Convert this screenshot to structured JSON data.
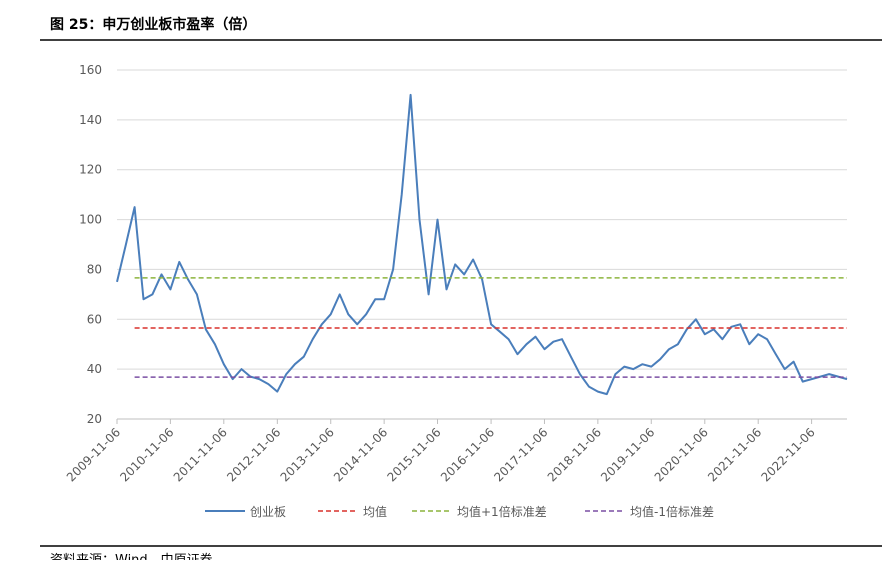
{
  "chart_data": {
    "type": "line",
    "title": "图 25：申万创业板市盈率（倍）",
    "source": "资料来源：Wind，中原证券",
    "x": [
      "2009-11-06",
      "2010-01-06",
      "2010-03-06",
      "2010-05-06",
      "2010-07-06",
      "2010-09-06",
      "2010-11-06",
      "2011-01-06",
      "2011-03-06",
      "2011-05-06",
      "2011-07-06",
      "2011-09-06",
      "2011-11-06",
      "2012-01-06",
      "2012-03-06",
      "2012-05-06",
      "2012-07-06",
      "2012-09-06",
      "2012-11-06",
      "2013-01-06",
      "2013-03-06",
      "2013-05-06",
      "2013-07-06",
      "2013-09-06",
      "2013-11-06",
      "2014-01-06",
      "2014-03-06",
      "2014-05-06",
      "2014-07-06",
      "2014-09-06",
      "2014-11-06",
      "2015-01-06",
      "2015-03-06",
      "2015-05-06",
      "2015-07-06",
      "2015-09-06",
      "2015-11-06",
      "2016-01-06",
      "2016-03-06",
      "2016-05-06",
      "2016-07-06",
      "2016-09-06",
      "2016-11-06",
      "2017-01-06",
      "2017-03-06",
      "2017-05-06",
      "2017-07-06",
      "2017-09-06",
      "2017-11-06",
      "2018-01-06",
      "2018-03-06",
      "2018-05-06",
      "2018-07-06",
      "2018-09-06",
      "2018-11-06",
      "2019-01-06",
      "2019-03-06",
      "2019-05-06",
      "2019-07-06",
      "2019-09-06",
      "2019-11-06",
      "2020-01-06",
      "2020-03-06",
      "2020-05-06",
      "2020-07-06",
      "2020-09-06",
      "2020-11-06",
      "2021-01-06",
      "2021-03-06",
      "2021-05-06",
      "2021-07-06",
      "2021-09-06",
      "2021-11-06",
      "2022-01-06",
      "2022-03-06",
      "2022-05-06",
      "2022-07-06",
      "2022-09-06",
      "2022-11-06",
      "2023-01-06",
      "2023-03-06",
      "2023-05-06",
      "2023-07-06"
    ],
    "series": [
      {
        "name": "创业板",
        "color": "#4a7ebb",
        "width": 2,
        "dash": "",
        "values": [
          75,
          90,
          105,
          68,
          70,
          78,
          72,
          83,
          76,
          70,
          56,
          50,
          42,
          36,
          40,
          37,
          36,
          34,
          31,
          38,
          42,
          45,
          52,
          58,
          62,
          70,
          62,
          58,
          62,
          68,
          68,
          80,
          110,
          150,
          100,
          70,
          100,
          72,
          82,
          78,
          84,
          76,
          58,
          55,
          52,
          46,
          50,
          53,
          48,
          51,
          52,
          45,
          38,
          33,
          31,
          30,
          38,
          41,
          40,
          42,
          41,
          44,
          48,
          50,
          56,
          60,
          54,
          56,
          52,
          57,
          58,
          50,
          54,
          52,
          46,
          40,
          43,
          35,
          36,
          37,
          38,
          37,
          36
        ]
      },
      {
        "name": "均值",
        "color": "#d9302c",
        "width": 1.5,
        "dash": "5,3",
        "values": [
          null,
          null,
          56.5,
          56.5,
          56.5,
          56.5,
          56.5,
          56.5,
          56.5,
          56.5,
          56.5,
          56.5,
          56.5,
          56.5,
          56.5,
          56.5,
          56.5,
          56.5,
          56.5,
          56.5,
          56.5,
          56.5,
          56.5,
          56.5,
          56.5,
          56.5,
          56.5,
          56.5,
          56.5,
          56.5,
          56.5,
          56.5,
          56.5,
          56.5,
          56.5,
          56.5,
          56.5,
          56.5,
          56.5,
          56.5,
          56.5,
          56.5,
          56.5,
          56.5,
          56.5,
          56.5,
          56.5,
          56.5,
          56.5,
          56.5,
          56.5,
          56.5,
          56.5,
          56.5,
          56.5,
          56.5,
          56.5,
          56.5,
          56.5,
          56.5,
          56.5,
          56.5,
          56.5,
          56.5,
          56.5,
          56.5,
          56.5,
          56.5,
          56.5,
          56.5,
          56.5,
          56.5,
          56.5,
          56.5,
          56.5,
          56.5,
          56.5,
          56.5,
          56.5,
          56.5,
          56.5,
          56.5,
          56.5
        ]
      },
      {
        "name": "均值+1倍标准差",
        "color": "#8cb43c",
        "width": 1.5,
        "dash": "5,3",
        "values": [
          null,
          null,
          76.6,
          76.6,
          76.6,
          76.6,
          76.6,
          76.6,
          76.6,
          76.6,
          76.6,
          76.6,
          76.6,
          76.6,
          76.6,
          76.6,
          76.6,
          76.6,
          76.6,
          76.6,
          76.6,
          76.6,
          76.6,
          76.6,
          76.6,
          76.6,
          76.6,
          76.6,
          76.6,
          76.6,
          76.6,
          76.6,
          76.6,
          76.6,
          76.6,
          76.6,
          76.6,
          76.6,
          76.6,
          76.6,
          76.6,
          76.6,
          76.6,
          76.6,
          76.6,
          76.6,
          76.6,
          76.6,
          76.6,
          76.6,
          76.6,
          76.6,
          76.6,
          76.6,
          76.6,
          76.6,
          76.6,
          76.6,
          76.6,
          76.6,
          76.6,
          76.6,
          76.6,
          76.6,
          76.6,
          76.6,
          76.6,
          76.6,
          76.6,
          76.6,
          76.6,
          76.6,
          76.6,
          76.6,
          76.6,
          76.6,
          76.6,
          76.6,
          76.6,
          76.6,
          76.6,
          76.6,
          76.6
        ]
      },
      {
        "name": "均值-1倍标准差",
        "color": "#7a4fa3",
        "width": 1.5,
        "dash": "5,3",
        "values": [
          null,
          null,
          36.8,
          36.8,
          36.8,
          36.8,
          36.8,
          36.8,
          36.8,
          36.8,
          36.8,
          36.8,
          36.8,
          36.8,
          36.8,
          36.8,
          36.8,
          36.8,
          36.8,
          36.8,
          36.8,
          36.8,
          36.8,
          36.8,
          36.8,
          36.8,
          36.8,
          36.8,
          36.8,
          36.8,
          36.8,
          36.8,
          36.8,
          36.8,
          36.8,
          36.8,
          36.8,
          36.8,
          36.8,
          36.8,
          36.8,
          36.8,
          36.8,
          36.8,
          36.8,
          36.8,
          36.8,
          36.8,
          36.8,
          36.8,
          36.8,
          36.8,
          36.8,
          36.8,
          36.8,
          36.8,
          36.8,
          36.8,
          36.8,
          36.8,
          36.8,
          36.8,
          36.8,
          36.8,
          36.8,
          36.8,
          36.8,
          36.8,
          36.8,
          36.8,
          36.8,
          36.8,
          36.8,
          36.8,
          36.8,
          36.8,
          36.8,
          36.8,
          36.8,
          36.8,
          36.8,
          36.8,
          36.8
        ]
      }
    ],
    "xlim": [
      "2009-11-06",
      "2023-07-06"
    ],
    "xticks": [
      "2009-11-06",
      "2010-11-06",
      "2011-11-06",
      "2012-11-06",
      "2013-11-06",
      "2014-11-06",
      "2015-11-06",
      "2016-11-06",
      "2017-11-06",
      "2018-11-06",
      "2019-11-06",
      "2020-11-06",
      "2021-11-06",
      "2022-11-06"
    ],
    "ylim": [
      20,
      160
    ],
    "yticks": [
      20,
      40,
      60,
      80,
      100,
      120,
      140,
      160
    ],
    "grid": true,
    "legend": "bottom"
  }
}
